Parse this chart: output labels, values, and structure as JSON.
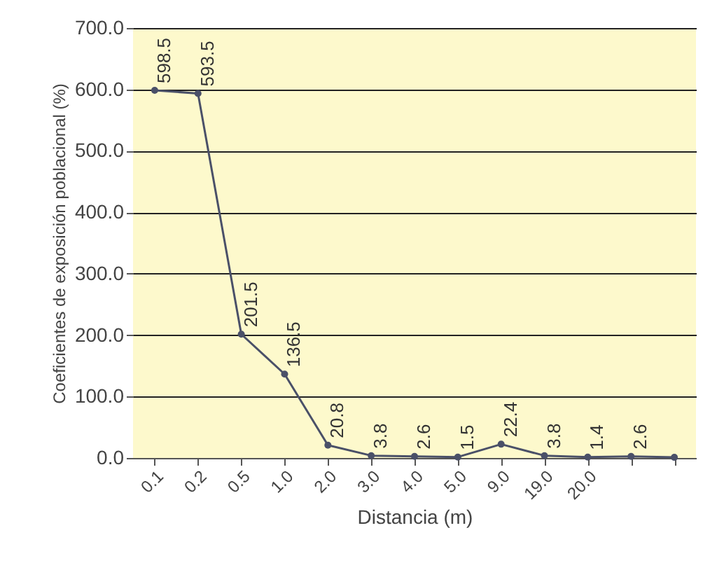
{
  "chart_data": {
    "type": "line",
    "xlabel": "Distancia (m)",
    "ylabel": "Coeficientes de exposición poblacional (%)",
    "categories": [
      "0.1",
      "0.2",
      "0.5",
      "1.0",
      "2.0",
      "3.0",
      "4.0",
      "5.0",
      "9.0",
      "19.0",
      "20.0",
      null,
      null
    ],
    "series": [
      {
        "color": "#4a5068",
        "values": [
          598.5,
          593.5,
          201.5,
          136.5,
          20.8,
          3.8,
          2.6,
          1.5,
          22.4,
          3.8,
          1.4,
          2.6,
          1
        ]
      }
    ],
    "value_labels": [
      "598.5",
      "593.5",
      "201.5",
      "136.5",
      "20.8",
      "3.8",
      "2.6",
      "1.5",
      "22.4",
      "3.8",
      "1.4",
      "2.6",
      null
    ],
    "ylim": [
      0,
      700
    ],
    "yticks": [
      {
        "value": 0,
        "label": "0.0"
      },
      {
        "value": 100,
        "label": "100.0"
      },
      {
        "value": 200,
        "label": "200.0"
      },
      {
        "value": 300,
        "label": "300.0"
      },
      {
        "value": 400,
        "label": "400.0"
      },
      {
        "value": 500,
        "label": "500.0"
      },
      {
        "value": 600,
        "label": "600.0"
      },
      {
        "value": 700,
        "label": "700.0"
      }
    ],
    "grid": "y",
    "marker": "circle",
    "line_style": "solid"
  }
}
